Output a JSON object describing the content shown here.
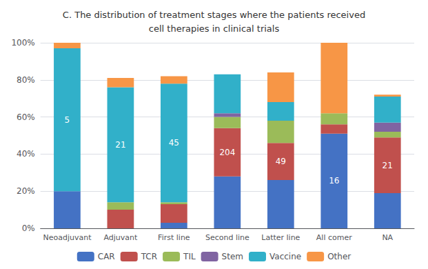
{
  "chart_data": {
    "type": "bar",
    "title": "C. The distribution of treatment stages where the patients received\ncell therapies in clinical trials",
    "categories": [
      "Neoadjuvant",
      "Adjuvant",
      "First line",
      "Second line",
      "Latter line",
      "All comer",
      "NA"
    ],
    "series": [
      {
        "name": "CAR",
        "color": "#4472C4",
        "values": [
          20,
          0,
          3,
          28,
          26,
          51,
          19
        ]
      },
      {
        "name": "TCR",
        "color": "#C0504D",
        "values": [
          0,
          10,
          10,
          26,
          20,
          5,
          30
        ]
      },
      {
        "name": "TIL",
        "color": "#9BBB59",
        "values": [
          0,
          4,
          1,
          6,
          12,
          6,
          3
        ]
      },
      {
        "name": "Stem",
        "color": "#8064A2",
        "values": [
          0,
          0,
          0,
          2,
          0,
          0,
          5
        ]
      },
      {
        "name": "Vaccine",
        "color": "#31B0C9",
        "values": [
          77,
          62,
          64,
          21,
          10,
          0,
          14
        ]
      },
      {
        "name": "Other",
        "color": "#F79646",
        "values": [
          3,
          5,
          4,
          0,
          16,
          38,
          1
        ]
      }
    ],
    "annotations": [
      {
        "text": "5",
        "category": "Neoadjuvant",
        "series": "Vaccine"
      },
      {
        "text": "21",
        "category": "Adjuvant",
        "series": "Vaccine"
      },
      {
        "text": "45",
        "category": "First line",
        "series": "Vaccine"
      },
      {
        "text": "204",
        "category": "Second line",
        "series": "TCR"
      },
      {
        "text": "49",
        "category": "Latter line",
        "series": "TCR"
      },
      {
        "text": "16",
        "category": "All comer",
        "series": "CAR"
      },
      {
        "text": "21",
        "category": "NA",
        "series": "TCR"
      }
    ],
    "stacked": true,
    "ylim": [
      0,
      100
    ],
    "yticks": [
      {
        "value": 0,
        "label": "0%"
      },
      {
        "value": 20,
        "label": "20%"
      },
      {
        "value": 40,
        "label": "40%"
      },
      {
        "value": 60,
        "label": "60%"
      },
      {
        "value": 80,
        "label": "80%"
      },
      {
        "value": 100,
        "label": "100%"
      }
    ],
    "grid": true,
    "legend": "bottom"
  }
}
